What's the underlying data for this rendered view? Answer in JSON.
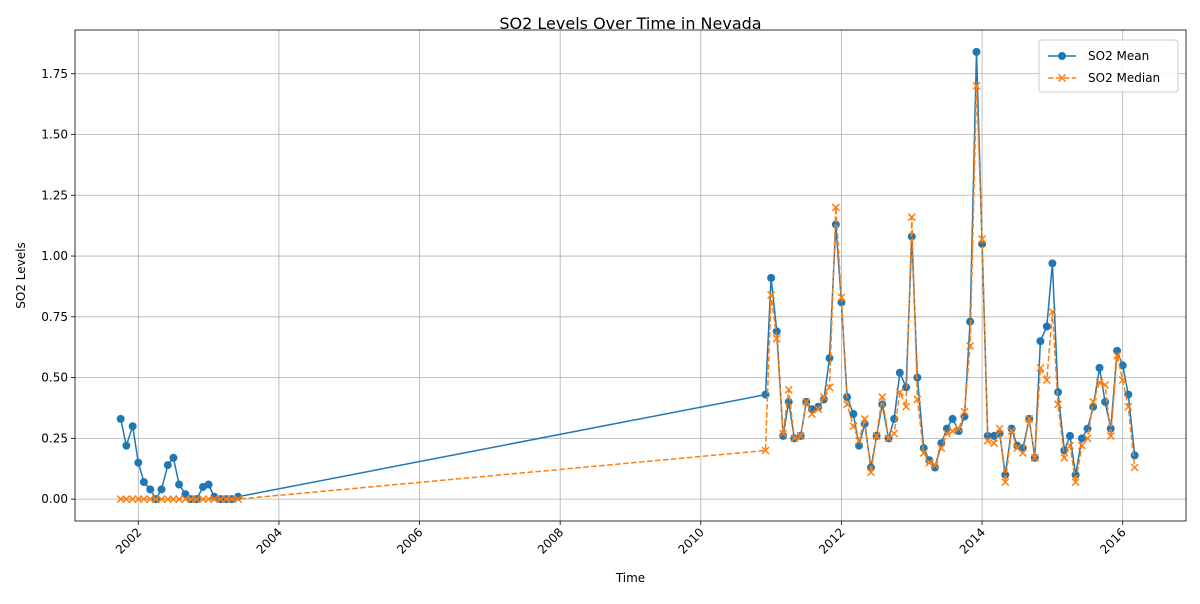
{
  "chart_data": {
    "type": "line",
    "title": "SO2 Levels Over Time in Nevada",
    "xlabel": "Time",
    "ylabel": "SO2 Levels",
    "xlim": [
      2001.1,
      2016.9
    ],
    "ylim": [
      -0.09,
      1.93
    ],
    "xticks": [
      2002,
      2004,
      2006,
      2008,
      2010,
      2012,
      2014,
      2016
    ],
    "xtick_labels": [
      "2002",
      "2004",
      "2006",
      "2008",
      "2010",
      "2012",
      "2014",
      "2016"
    ],
    "yticks": [
      0.0,
      0.25,
      0.5,
      0.75,
      1.0,
      1.25,
      1.5,
      1.75
    ],
    "ytick_labels": [
      "0.00",
      "0.25",
      "0.50",
      "0.75",
      "1.00",
      "1.25",
      "1.50",
      "1.75"
    ],
    "grid": true,
    "legend_position": "top-right",
    "series": [
      {
        "name": "SO2 Mean",
        "color": "#1f77b4",
        "line_style": "solid",
        "marker": "circle",
        "x": [
          2001.75,
          2001.83,
          2001.92,
          2002.0,
          2002.08,
          2002.17,
          2002.25,
          2002.33,
          2002.42,
          2002.5,
          2002.58,
          2002.67,
          2002.75,
          2002.83,
          2002.92,
          2003.0,
          2003.08,
          2003.17,
          2003.25,
          2003.33,
          2003.42,
          2010.92,
          2011.0,
          2011.08,
          2011.17,
          2011.25,
          2011.33,
          2011.42,
          2011.5,
          2011.58,
          2011.67,
          2011.75,
          2011.83,
          2011.92,
          2012.0,
          2012.08,
          2012.17,
          2012.25,
          2012.33,
          2012.42,
          2012.5,
          2012.58,
          2012.67,
          2012.75,
          2012.83,
          2012.92,
          2013.0,
          2013.08,
          2013.17,
          2013.25,
          2013.33,
          2013.42,
          2013.5,
          2013.58,
          2013.67,
          2013.75,
          2013.83,
          2013.92,
          2014.0,
          2014.08,
          2014.17,
          2014.25,
          2014.33,
          2014.42,
          2014.5,
          2014.58,
          2014.67,
          2014.75,
          2014.83,
          2014.92,
          2015.0,
          2015.08,
          2015.17,
          2015.25,
          2015.33,
          2015.42,
          2015.5,
          2015.58,
          2015.67,
          2015.75,
          2015.83,
          2015.92,
          2016.0,
          2016.08,
          2016.17
        ],
        "y": [
          0.33,
          0.22,
          0.3,
          0.15,
          0.07,
          0.04,
          0.0,
          0.04,
          0.14,
          0.17,
          0.06,
          0.02,
          0.0,
          0.0,
          0.05,
          0.06,
          0.01,
          0.0,
          0.0,
          0.0,
          0.01,
          0.43,
          0.91,
          0.69,
          0.26,
          0.4,
          0.25,
          0.26,
          0.4,
          0.37,
          0.38,
          0.41,
          0.58,
          1.13,
          0.81,
          0.42,
          0.35,
          0.22,
          0.31,
          0.13,
          0.26,
          0.39,
          0.25,
          0.33,
          0.52,
          0.46,
          1.08,
          0.5,
          0.21,
          0.16,
          0.13,
          0.23,
          0.29,
          0.33,
          0.28,
          0.34,
          0.73,
          1.84,
          1.05,
          0.26,
          0.26,
          0.27,
          0.1,
          0.29,
          0.22,
          0.21,
          0.33,
          0.17,
          0.65,
          0.71,
          0.97,
          0.44,
          0.2,
          0.26,
          0.1,
          0.25,
          0.29,
          0.38,
          0.54,
          0.4,
          0.29,
          0.61,
          0.55,
          0.43,
          0.18
        ]
      },
      {
        "name": "SO2 Median",
        "color": "#ff7f0e",
        "line_style": "dashed",
        "marker": "x",
        "x": [
          2001.75,
          2001.83,
          2001.92,
          2002.0,
          2002.08,
          2002.17,
          2002.25,
          2002.33,
          2002.42,
          2002.5,
          2002.58,
          2002.67,
          2002.75,
          2002.83,
          2002.92,
          2003.0,
          2003.08,
          2003.17,
          2003.25,
          2003.33,
          2003.42,
          2010.92,
          2011.0,
          2011.08,
          2011.17,
          2011.25,
          2011.33,
          2011.42,
          2011.5,
          2011.58,
          2011.67,
          2011.75,
          2011.83,
          2011.92,
          2012.0,
          2012.08,
          2012.17,
          2012.25,
          2012.33,
          2012.42,
          2012.5,
          2012.58,
          2012.67,
          2012.75,
          2012.83,
          2012.92,
          2013.0,
          2013.08,
          2013.17,
          2013.25,
          2013.33,
          2013.42,
          2013.5,
          2013.58,
          2013.67,
          2013.75,
          2013.83,
          2013.92,
          2014.0,
          2014.08,
          2014.17,
          2014.25,
          2014.33,
          2014.42,
          2014.5,
          2014.58,
          2014.67,
          2014.75,
          2014.83,
          2014.92,
          2015.0,
          2015.08,
          2015.17,
          2015.25,
          2015.33,
          2015.42,
          2015.5,
          2015.58,
          2015.67,
          2015.75,
          2015.83,
          2015.92,
          2016.0,
          2016.08,
          2016.17
        ],
        "y": [
          0.0,
          0.0,
          0.0,
          0.0,
          0.0,
          0.0,
          0.0,
          0.0,
          0.0,
          0.0,
          0.0,
          0.0,
          0.0,
          0.0,
          0.0,
          0.0,
          0.0,
          0.0,
          0.0,
          0.0,
          0.0,
          0.2,
          0.84,
          0.66,
          0.27,
          0.45,
          0.25,
          0.26,
          0.4,
          0.35,
          0.37,
          0.42,
          0.46,
          1.2,
          0.83,
          0.39,
          0.3,
          0.24,
          0.33,
          0.11,
          0.26,
          0.42,
          0.25,
          0.27,
          0.44,
          0.38,
          1.16,
          0.41,
          0.19,
          0.15,
          0.14,
          0.21,
          0.27,
          0.28,
          0.29,
          0.36,
          0.63,
          1.7,
          1.07,
          0.24,
          0.23,
          0.29,
          0.07,
          0.28,
          0.21,
          0.19,
          0.33,
          0.17,
          0.54,
          0.49,
          0.77,
          0.39,
          0.17,
          0.22,
          0.07,
          0.22,
          0.25,
          0.4,
          0.48,
          0.47,
          0.26,
          0.59,
          0.49,
          0.38,
          0.13
        ]
      }
    ]
  }
}
